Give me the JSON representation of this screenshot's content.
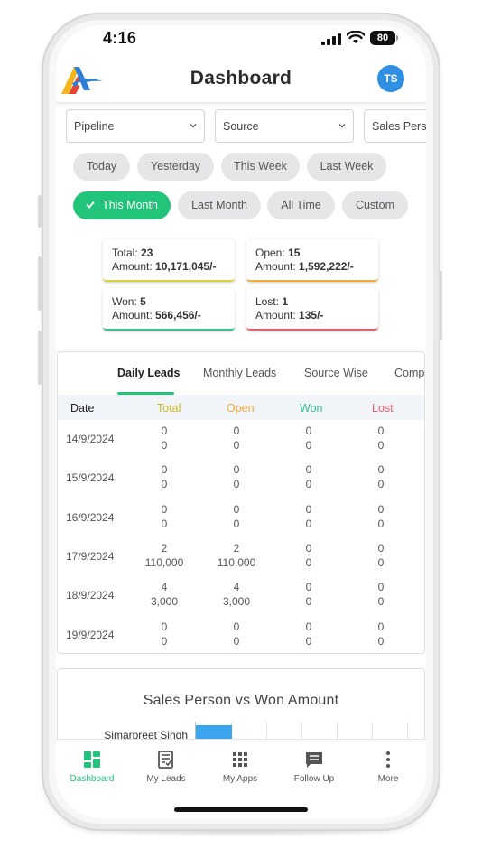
{
  "status": {
    "time": "4:16",
    "battery": "80"
  },
  "header": {
    "title": "Dashboard",
    "avatar_initials": "TS"
  },
  "filters": {
    "pipeline": "Pipeline",
    "source": "Source",
    "sales_person": "Sales Person"
  },
  "chips": {
    "today": "Today",
    "yesterday": "Yesterday",
    "this_week": "This Week",
    "last_week": "Last Week",
    "this_month": "This Month",
    "last_month": "Last Month",
    "all_time": "All Time",
    "custom": "Custom",
    "selected": "This Month"
  },
  "stats": {
    "total": {
      "label": "Total:",
      "count": "23",
      "amount_label": "Amount:",
      "amount": "10,171,045/-"
    },
    "open": {
      "label": "Open:",
      "count": "15",
      "amount_label": "Amount:",
      "amount": "1,592,222/-"
    },
    "won": {
      "label": "Won:",
      "count": "5",
      "amount_label": "Amount:",
      "amount": "566,456/-"
    },
    "lost": {
      "label": "Lost:",
      "count": "1",
      "amount_label": "Amount:",
      "amount": "135/-"
    }
  },
  "tabs": {
    "daily": "Daily Leads",
    "monthly": "Monthly Leads",
    "source": "Source Wise",
    "compare": "Compa"
  },
  "table": {
    "headers": {
      "date": "Date",
      "total": "Total",
      "open": "Open",
      "won": "Won",
      "lost": "Lost"
    },
    "rows": [
      {
        "date": "14/9/2024",
        "total": [
          "0",
          "0"
        ],
        "open": [
          "0",
          "0"
        ],
        "won": [
          "0",
          "0"
        ],
        "lost": [
          "0",
          "0"
        ]
      },
      {
        "date": "15/9/2024",
        "total": [
          "0",
          "0"
        ],
        "open": [
          "0",
          "0"
        ],
        "won": [
          "0",
          "0"
        ],
        "lost": [
          "0",
          "0"
        ]
      },
      {
        "date": "16/9/2024",
        "total": [
          "0",
          "0"
        ],
        "open": [
          "0",
          "0"
        ],
        "won": [
          "0",
          "0"
        ],
        "lost": [
          "0",
          "0"
        ]
      },
      {
        "date": "17/9/2024",
        "total": [
          "2",
          "110,000"
        ],
        "open": [
          "2",
          "110,000"
        ],
        "won": [
          "0",
          "0"
        ],
        "lost": [
          "0",
          "0"
        ]
      },
      {
        "date": "18/9/2024",
        "total": [
          "4",
          "3,000"
        ],
        "open": [
          "4",
          "3,000"
        ],
        "won": [
          "0",
          "0"
        ],
        "lost": [
          "0",
          "0"
        ]
      },
      {
        "date": "19/9/2024",
        "total": [
          "0",
          "0"
        ],
        "open": [
          "0",
          "0"
        ],
        "won": [
          "0",
          "0"
        ],
        "lost": [
          "0",
          "0"
        ]
      }
    ]
  },
  "chart": {
    "title": "Sales Person vs Won Amount",
    "bar_label": "Simarpreet Singh",
    "fill_fraction": 0.17
  },
  "nav": {
    "dashboard": "Dashboard",
    "leads": "My Leads",
    "apps": "My Apps",
    "follow_up": "Follow Up",
    "more": "More"
  },
  "colors": {
    "accent": "#22c47a",
    "total": "#d8d23a",
    "open": "#f2a93b",
    "won": "#35c48c",
    "lost": "#ef5d6b",
    "bar": "#3aa4ef"
  }
}
